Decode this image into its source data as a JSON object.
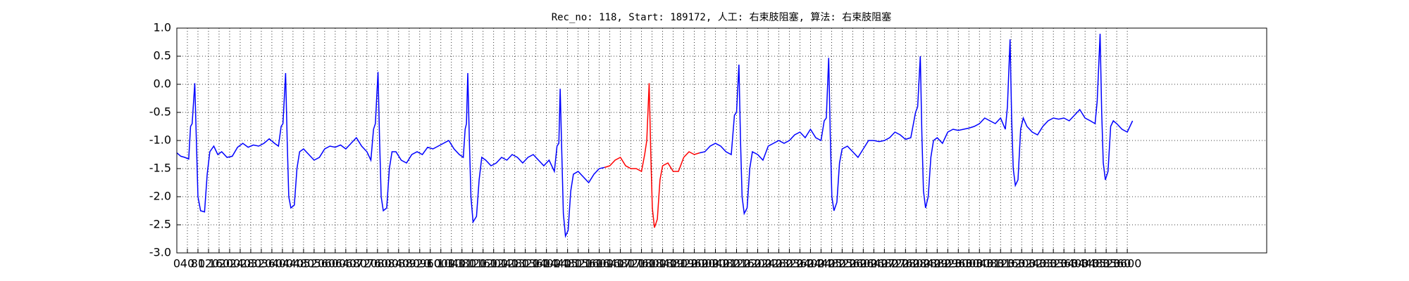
{
  "chart_data": {
    "type": "line",
    "title": "Rec_no: 118, Start: 189172, 人工: 右束肢阻塞, 算法: 右束肢阻塞",
    "xlim": [
      0,
      4128
    ],
    "ylim": [
      -3,
      1
    ],
    "xticks": [
      0,
      40,
      80,
      120,
      160,
      200,
      240,
      280,
      320,
      360,
      400,
      440,
      480,
      520,
      560,
      600,
      640,
      680,
      720,
      760,
      800,
      840,
      880,
      920,
      960,
      1000,
      1040,
      1080,
      1120,
      1160,
      1200,
      1240,
      1280,
      1320,
      1360,
      1400,
      1440,
      1480,
      1520,
      1560,
      1600,
      1640,
      1680,
      1720,
      1760,
      1800,
      1840,
      1880,
      1920,
      1960,
      2000,
      2040,
      2080,
      2120,
      2160,
      2200,
      2240,
      2280,
      2320,
      2360,
      2400,
      2440,
      2480,
      2520,
      2560,
      2600,
      2640,
      2680,
      2720,
      2760,
      2800,
      2840,
      2880,
      2920,
      2960,
      3000,
      3040,
      3080,
      3120,
      3160,
      3200,
      3240,
      3280,
      3320,
      3360,
      3400,
      3440,
      3480,
      3520,
      3560,
      3600
    ],
    "yticks": [
      {
        "value": -3,
        "label": "-3.0"
      },
      -2.5,
      {
        "value": -2,
        "label": "-2.0"
      },
      -1.5,
      {
        "value": -1,
        "label": "-1.0"
      },
      -0.5,
      {
        "value": 0,
        "label": "0.0"
      },
      0.5,
      {
        "value": 1,
        "label": "1.0"
      }
    ],
    "grid": true,
    "series": [
      {
        "color": "#0000ff",
        "x": [
          0,
          15,
          30,
          45,
          52,
          58,
          68,
          74,
          80,
          90,
          105,
          115,
          125,
          140,
          155,
          170,
          190,
          210,
          230,
          250,
          270,
          290,
          310,
          330,
          350,
          370,
          385,
          395,
          402,
          412,
          418,
          424,
          432,
          445,
          455,
          465,
          480,
          500,
          520,
          540,
          560,
          580,
          600,
          620,
          640,
          660,
          680,
          700,
          720,
          735,
          745,
          752,
          762,
          768,
          774,
          782,
          795,
          805,
          815,
          830,
          850,
          870,
          890,
          910,
          930,
          950,
          970,
          990,
          1010,
          1030,
          1050,
          1070,
          1085,
          1092,
          1097,
          1102,
          1108,
          1114,
          1122,
          1135,
          1145,
          1155,
          1170,
          1190,
          1210,
          1230,
          1250,
          1270,
          1290,
          1310,
          1330,
          1350,
          1370,
          1390,
          1410,
          1430,
          1440,
          1447,
          1452,
          1458,
          1464,
          1472,
          1482,
          1492,
          1502,
          1520,
          1540,
          1560,
          1580,
          1600,
          1620,
          null,
          1980,
          2000,
          2020,
          2040,
          2060,
          2080,
          2100,
          2112,
          2120,
          2129,
          2135,
          2141,
          2149,
          2160,
          2170,
          2180,
          2200,
          2220,
          2240,
          2260,
          2280,
          2300,
          2320,
          2340,
          2360,
          2380,
          2400,
          2420,
          2440,
          2452,
          2460,
          2469,
          2475,
          2481,
          2489,
          2500,
          2510,
          2520,
          2540,
          2560,
          2580,
          2600,
          2620,
          2640,
          2660,
          2680,
          2700,
          2720,
          2740,
          2760,
          2780,
          2798,
          2806,
          2816,
          2822,
          2828,
          2836,
          2846,
          2856,
          2866,
          2880,
          2900,
          2920,
          2940,
          2960,
          2980,
          3000,
          3020,
          3040,
          3060,
          3080,
          3100,
          3120,
          3138,
          3146,
          3156,
          3162,
          3168,
          3176,
          3186,
          3196,
          3206,
          3220,
          3240,
          3260,
          3280,
          3300,
          3320,
          3340,
          3360,
          3380,
          3400,
          3420,
          3440,
          3460,
          3478,
          3486,
          3497,
          3503,
          3509,
          3517,
          3527,
          3537,
          3547,
          3560,
          3580,
          3600,
          3620
        ],
        "values": [
          -1.22,
          -1.28,
          -1.3,
          -1.33,
          -0.75,
          -0.7,
          0.02,
          -1.0,
          -2.0,
          -2.25,
          -2.27,
          -1.6,
          -1.2,
          -1.1,
          -1.25,
          -1.2,
          -1.3,
          -1.28,
          -1.12,
          -1.05,
          -1.12,
          -1.08,
          -1.1,
          -1.05,
          -0.97,
          -1.05,
          -1.1,
          -0.75,
          -0.7,
          0.2,
          -1.0,
          -2.0,
          -2.2,
          -2.15,
          -1.5,
          -1.2,
          -1.15,
          -1.25,
          -1.35,
          -1.3,
          -1.15,
          -1.1,
          -1.12,
          -1.08,
          -1.15,
          -1.05,
          -0.95,
          -1.1,
          -1.2,
          -1.35,
          -0.8,
          -0.7,
          0.22,
          -1.0,
          -2.0,
          -2.25,
          -2.2,
          -1.5,
          -1.2,
          -1.2,
          -1.35,
          -1.4,
          -1.25,
          -1.2,
          -1.25,
          -1.12,
          -1.15,
          -1.1,
          -1.05,
          -1.0,
          -1.15,
          -1.25,
          -1.3,
          -0.8,
          -0.7,
          0.2,
          -1.0,
          -2.0,
          -2.45,
          -2.35,
          -1.7,
          -1.3,
          -1.35,
          -1.45,
          -1.4,
          -1.3,
          -1.35,
          -1.25,
          -1.3,
          -1.4,
          -1.3,
          -1.25,
          -1.35,
          -1.45,
          -1.35,
          -1.55,
          -1.1,
          -1.05,
          -0.08,
          -1.2,
          -2.3,
          -2.7,
          -2.6,
          -1.9,
          -1.6,
          -1.55,
          -1.65,
          -1.75,
          -1.6,
          -1.5,
          -1.48,
          null,
          -1.22,
          -1.2,
          -1.1,
          -1.05,
          -1.1,
          -1.2,
          -1.25,
          -0.55,
          -0.5,
          0.35,
          -1.0,
          -2.0,
          -2.3,
          -2.2,
          -1.5,
          -1.2,
          -1.25,
          -1.35,
          -1.1,
          -1.05,
          -1.0,
          -1.05,
          -1.0,
          -0.9,
          -0.85,
          -0.95,
          -0.8,
          -0.95,
          -1.0,
          -0.65,
          -0.6,
          0.47,
          -0.9,
          -2.0,
          -2.25,
          -2.1,
          -1.4,
          -1.15,
          -1.1,
          -1.2,
          -1.3,
          -1.15,
          -1.0,
          -1.0,
          -1.02,
          -1.0,
          -0.95,
          -0.85,
          -0.9,
          -0.98,
          -0.95,
          -0.5,
          -0.4,
          0.5,
          -0.9,
          -1.9,
          -2.2,
          -2.0,
          -1.3,
          -1.0,
          -0.95,
          -1.05,
          -0.85,
          -0.8,
          -0.82,
          -0.8,
          -0.78,
          -0.75,
          -0.7,
          -0.6,
          -0.65,
          -0.7,
          -0.6,
          -0.8,
          -0.4,
          0.8,
          -0.6,
          -1.5,
          -1.8,
          -1.7,
          -0.8,
          -0.6,
          -0.75,
          -0.85,
          -0.9,
          -0.75,
          -0.65,
          -0.6,
          -0.62,
          -0.6,
          -0.65,
          -0.55,
          -0.45,
          -0.6,
          -0.65,
          -0.7,
          -0.3,
          0.9,
          -0.5,
          -1.4,
          -1.7,
          -1.55,
          -0.75,
          -0.65,
          -0.7,
          -0.8,
          -0.85,
          -0.65
        ]
      },
      {
        "color": "#ff0000",
        "x": [
          1620,
          1640,
          1660,
          1680,
          1700,
          1720,
          1740,
          1760,
          1772,
          1780,
          1789,
          1795,
          1801,
          1809,
          1820,
          1830,
          1840,
          1860,
          1880,
          1900,
          1920,
          1940,
          1960,
          1980
        ],
        "values": [
          -1.48,
          -1.45,
          -1.35,
          -1.3,
          -1.45,
          -1.5,
          -1.5,
          -1.55,
          -1.25,
          -1.0,
          0.02,
          -1.2,
          -2.2,
          -2.55,
          -2.4,
          -1.7,
          -1.45,
          -1.4,
          -1.55,
          -1.55,
          -1.3,
          -1.2,
          -1.25,
          -1.22
        ]
      }
    ]
  }
}
